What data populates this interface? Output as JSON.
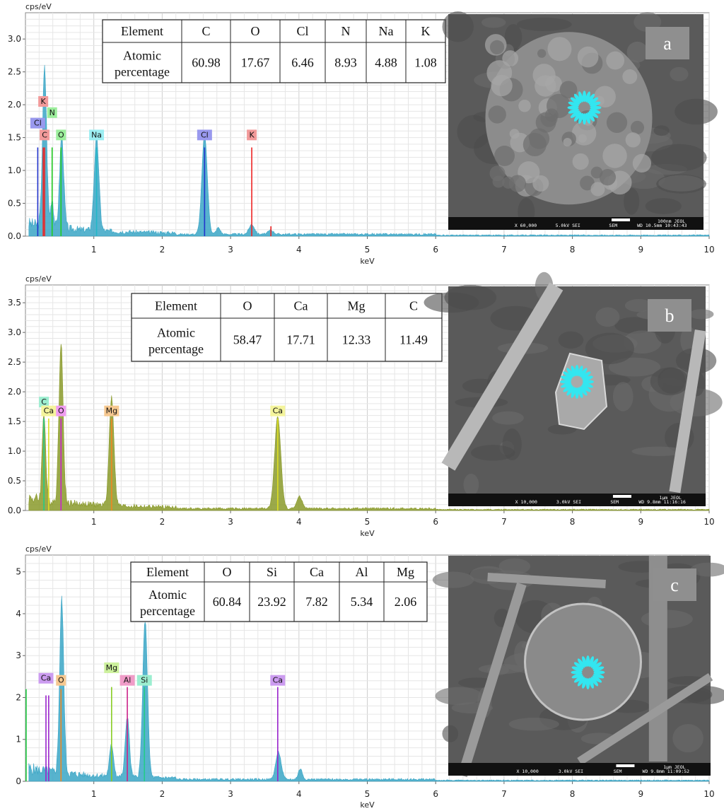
{
  "chart_data": [
    {
      "type": "bar",
      "panel": "a",
      "ylabel": "cps/eV",
      "xlabel": "keV",
      "xlim": [
        0,
        10
      ],
      "ylim": [
        0,
        3.4
      ],
      "yticks": [
        0.0,
        0.5,
        1.0,
        1.5,
        2.0,
        2.5,
        3.0
      ],
      "ytick_labels": [
        "0.0",
        "0.5",
        "1.0",
        "1.5",
        "2.0",
        "2.5",
        "3.0"
      ],
      "xticks": [
        1,
        2,
        3,
        4,
        5,
        6,
        7,
        8,
        9,
        10
      ],
      "xtick_labels": [
        "1",
        "2",
        "3",
        "4",
        "5",
        "6",
        "7",
        "8",
        "9",
        "10"
      ],
      "grid": true,
      "spectrum_color": "#3aa6c6",
      "spectrum_peaks": [
        {
          "x": 0.28,
          "y": 2.4,
          "w": 0.03
        },
        {
          "x": 0.39,
          "y": 0.45,
          "w": 0.02
        },
        {
          "x": 0.53,
          "y": 1.4,
          "w": 0.03
        },
        {
          "x": 1.04,
          "y": 1.4,
          "w": 0.035
        },
        {
          "x": 2.62,
          "y": 1.5,
          "w": 0.04
        },
        {
          "x": 2.82,
          "y": 0.1,
          "w": 0.03
        },
        {
          "x": 3.31,
          "y": 0.15,
          "w": 0.04
        },
        {
          "x": 3.59,
          "y": 0.06,
          "w": 0.04
        }
      ],
      "markers": [
        {
          "label": "Cl",
          "x": 0.18,
          "h": 1.35,
          "color": "#2233cc",
          "tag_bg": "#9999ee",
          "tag_y": 1.65
        },
        {
          "label": "K",
          "x": 0.26,
          "h": 1.35,
          "color": "#ee2222",
          "tag_bg": "#f29a9a",
          "tag_y": 1.98
        },
        {
          "label": "C",
          "x": 0.28,
          "h": 1.35,
          "color": "#ee2222",
          "tag_bg": "#f29a9a",
          "tag_y": 1.47
        },
        {
          "label": "N",
          "x": 0.39,
          "h": 1.35,
          "color": "#22cc22",
          "tag_bg": "#9cee9c",
          "tag_y": 1.81
        },
        {
          "label": "O",
          "x": 0.52,
          "h": 1.35,
          "color": "#22cc22",
          "tag_bg": "#9cee9c",
          "tag_y": 1.47
        },
        {
          "label": "Na",
          "x": 1.04,
          "h": 1.35,
          "color": "#22b8c8",
          "tag_bg": "#9ceef2",
          "tag_y": 1.47
        },
        {
          "label": "Cl",
          "x": 2.62,
          "h": 1.35,
          "color": "#2233cc",
          "tag_bg": "#9999ee",
          "tag_y": 1.47
        },
        {
          "label": "K",
          "x": 3.31,
          "h": 1.35,
          "color": "#ee2222",
          "tag_bg": "#f29a9a",
          "tag_y": 1.47
        },
        {
          "label": "",
          "x": 3.59,
          "h": 0.15,
          "color": "#ee2222",
          "tag_bg": "",
          "tag_y": 0
        }
      ],
      "table": {
        "header_label": "Element",
        "row_label_line1": "Atomic",
        "row_label_line2": "percentage",
        "elements": [
          "C",
          "O",
          "Cl",
          "N",
          "Na",
          "K"
        ],
        "values": [
          "60.98",
          "17.67",
          "6.46",
          "8.93",
          "4.88",
          "1.08"
        ]
      },
      "image": {
        "letter": "a",
        "info_left": "X 60,000",
        "info_mid": "5.0kV  SEI",
        "info_sem": "SEM",
        "info_scale": "100nm  JEOL",
        "info_wd": "WD 10.5mm 10:43:43"
      }
    },
    {
      "type": "bar",
      "panel": "b",
      "ylabel": "cps/eV",
      "xlabel": "keV",
      "xlim": [
        0,
        10
      ],
      "ylim": [
        0,
        3.8
      ],
      "yticks": [
        0.0,
        0.5,
        1.0,
        1.5,
        2.0,
        2.5,
        3.0,
        3.5
      ],
      "ytick_labels": [
        "0.0",
        "0.5",
        "1.0",
        "1.5",
        "2.0",
        "2.5",
        "3.0",
        "3.5"
      ],
      "xticks": [
        1,
        2,
        3,
        4,
        5,
        6,
        7,
        8,
        9,
        10
      ],
      "xtick_labels": [
        "1",
        "2",
        "3",
        "4",
        "5",
        "6",
        "7",
        "8",
        "9",
        "10"
      ],
      "grid": true,
      "spectrum_color": "#8a9a2a",
      "spectrum_peaks": [
        {
          "x": 0.27,
          "y": 1.5,
          "w": 0.025
        },
        {
          "x": 0.52,
          "y": 2.72,
          "w": 0.03
        },
        {
          "x": 1.26,
          "y": 1.83,
          "w": 0.035
        },
        {
          "x": 3.69,
          "y": 1.55,
          "w": 0.045
        },
        {
          "x": 4.01,
          "y": 0.2,
          "w": 0.04
        }
      ],
      "markers": [
        {
          "label": "C",
          "x": 0.27,
          "h": 1.55,
          "color": "#22cc88",
          "tag_bg": "#9ceed0",
          "tag_y": 1.75
        },
        {
          "label": "Ca",
          "x": 0.34,
          "h": 1.55,
          "color": "#dddd22",
          "tag_bg": "#f4f49c",
          "tag_y": 1.6
        },
        {
          "label": "O",
          "x": 0.52,
          "h": 1.55,
          "color": "#cc22cc",
          "tag_bg": "#f09cf0",
          "tag_y": 1.6
        },
        {
          "label": "Mg",
          "x": 1.26,
          "h": 1.55,
          "color": "#ee8822",
          "tag_bg": "#f6c890",
          "tag_y": 1.6
        },
        {
          "label": "Ca",
          "x": 3.69,
          "h": 1.55,
          "color": "#dddd22",
          "tag_bg": "#f4f49c",
          "tag_y": 1.6
        }
      ],
      "table": {
        "header_label": "Element",
        "row_label_line1": "Atomic",
        "row_label_line2": "percentage",
        "elements": [
          "O",
          "Ca",
          "Mg",
          "C"
        ],
        "values": [
          "58.47",
          "17.71",
          "12.33",
          "11.49"
        ]
      },
      "image": {
        "letter": "b",
        "info_left": "X 10,000",
        "info_mid": "3.0kV  SEI",
        "info_sem": "SEM",
        "info_scale": "1μm  JEOL",
        "info_wd": "WD 9.8mm 11:16:16"
      }
    },
    {
      "type": "bar",
      "panel": "c",
      "ylabel": "cps/eV",
      "xlabel": "keV",
      "xlim": [
        0,
        10
      ],
      "ylim": [
        0,
        5.4
      ],
      "yticks": [
        0,
        1,
        2,
        3,
        4,
        5
      ],
      "ytick_labels": [
        "0",
        "1",
        "2",
        "3",
        "4",
        "5"
      ],
      "xticks": [
        1,
        2,
        3,
        4,
        5,
        6,
        7,
        8,
        9,
        10
      ],
      "xtick_labels": [
        "1",
        "2",
        "3",
        "4",
        "5",
        "6",
        "7",
        "8",
        "9",
        "10"
      ],
      "grid": true,
      "spectrum_color": "#3aa6c6",
      "spectrum_peaks": [
        {
          "x": 0.53,
          "y": 4.15,
          "w": 0.03
        },
        {
          "x": 1.26,
          "y": 0.75,
          "w": 0.03
        },
        {
          "x": 1.49,
          "y": 1.45,
          "w": 0.03
        },
        {
          "x": 1.75,
          "y": 3.75,
          "w": 0.035
        },
        {
          "x": 3.7,
          "y": 0.65,
          "w": 0.04
        },
        {
          "x": 4.02,
          "y": 0.25,
          "w": 0.03
        }
      ],
      "markers": [
        {
          "label": "",
          "x": 0.01,
          "h": 2.2,
          "color": "#22cc44",
          "tag_bg": "",
          "tag_y": 0
        },
        {
          "label": "Ca",
          "x": 0.3,
          "h": 2.05,
          "color": "#9922cc",
          "tag_bg": "#cc9cf0",
          "tag_y": 2.35
        },
        {
          "label": "",
          "x": 0.34,
          "h": 2.05,
          "color": "#9922cc",
          "tag_bg": "",
          "tag_y": 0
        },
        {
          "label": "O",
          "x": 0.52,
          "h": 2.2,
          "color": "#ee8822",
          "tag_bg": "#f6c890",
          "tag_y": 2.3
        },
        {
          "label": "Mg",
          "x": 1.26,
          "h": 2.25,
          "color": "#88cc22",
          "tag_bg": "#ccf09c",
          "tag_y": 2.6
        },
        {
          "label": "Al",
          "x": 1.49,
          "h": 2.25,
          "color": "#cc2288",
          "tag_bg": "#f09cc8",
          "tag_y": 2.3
        },
        {
          "label": "Si",
          "x": 1.74,
          "h": 2.25,
          "color": "#22cc88",
          "tag_bg": "#9ceed0",
          "tag_y": 2.3
        },
        {
          "label": "Ca",
          "x": 3.69,
          "h": 2.25,
          "color": "#9922cc",
          "tag_bg": "#cc9cf0",
          "tag_y": 2.3
        }
      ],
      "table": {
        "header_label": "Element",
        "row_label_line1": "Atomic",
        "row_label_line2": "percentage",
        "elements": [
          "O",
          "Si",
          "Ca",
          "Al",
          "Mg"
        ],
        "values": [
          "60.84",
          "23.92",
          "7.82",
          "5.34",
          "2.06"
        ]
      },
      "image": {
        "letter": "c",
        "info_left": "X 10,000",
        "info_mid": "3.0kV  SEI",
        "info_sem": "SEM",
        "info_scale": "1μm  JEOL",
        "info_wd": "WD 9.8mm 11:09:52"
      }
    }
  ]
}
